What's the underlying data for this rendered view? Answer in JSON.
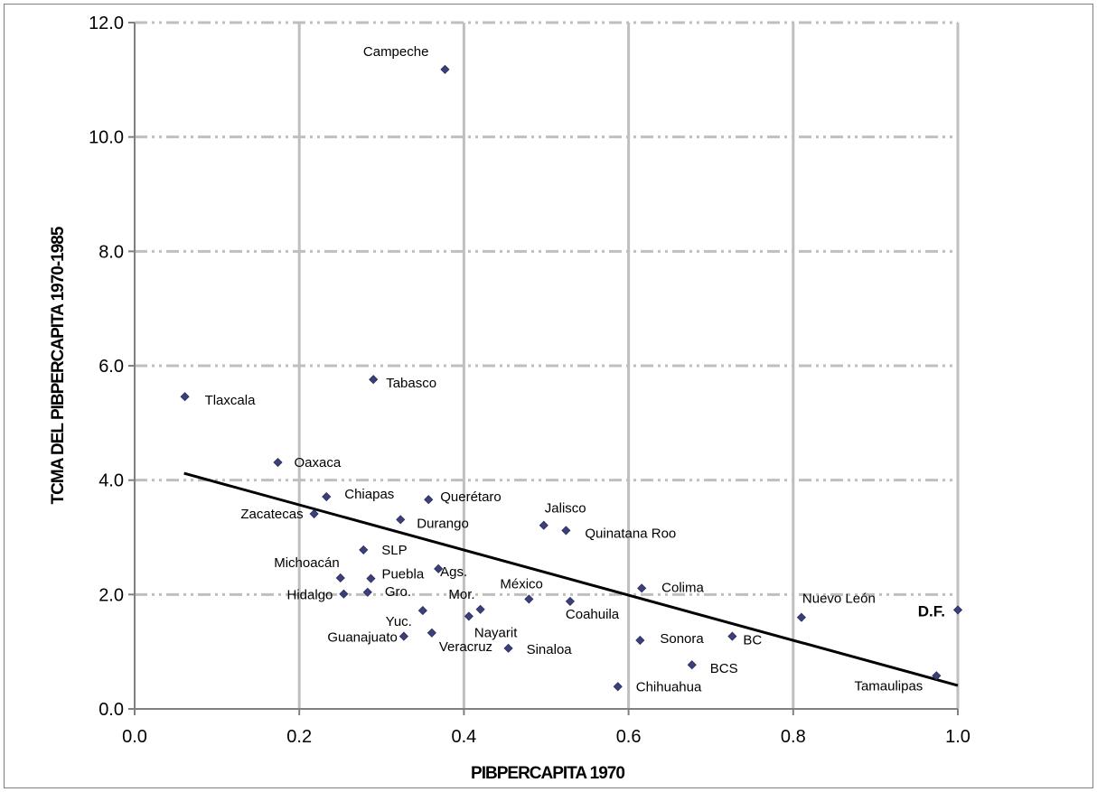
{
  "chart_data": {
    "type": "scatter",
    "title": "",
    "xlabel": "PIBPERCAPITA 1970",
    "ylabel": "TCMA DEL PIBPERCAPITA 1970-1985",
    "xlim": [
      0.0,
      1.0
    ],
    "ylim": [
      0.0,
      12.0
    ],
    "x_ticks": [
      "0.0",
      "0.2",
      "0.4",
      "0.6",
      "0.8",
      "1.0"
    ],
    "y_ticks": [
      "0.0",
      "2.0",
      "4.0",
      "6.0",
      "8.0",
      "10.0",
      "12.0"
    ],
    "grid": true,
    "legend": "none",
    "marker_color": "#3d3f7a",
    "trendline": {
      "x": [
        0.06,
        1.0
      ],
      "y": [
        4.12,
        0.41
      ]
    },
    "points": [
      {
        "label": "Campeche",
        "x": 0.377,
        "y": 11.18
      },
      {
        "label": "Tabasco",
        "x": 0.29,
        "y": 5.76
      },
      {
        "label": "Tlaxcala",
        "x": 0.061,
        "y": 5.46
      },
      {
        "label": "Oaxaca",
        "x": 0.174,
        "y": 4.31
      },
      {
        "label": "Chiapas",
        "x": 0.233,
        "y": 3.71
      },
      {
        "label": "Querétaro",
        "x": 0.357,
        "y": 3.66
      },
      {
        "label": "Zacatecas",
        "x": 0.218,
        "y": 3.41
      },
      {
        "label": "Durango",
        "x": 0.323,
        "y": 3.31
      },
      {
        "label": "Jalisco",
        "x": 0.497,
        "y": 3.21
      },
      {
        "label": "Quinatana Roo",
        "x": 0.524,
        "y": 3.12
      },
      {
        "label": "SLP",
        "x": 0.278,
        "y": 2.78
      },
      {
        "label": "Ags.",
        "x": 0.369,
        "y": 2.45
      },
      {
        "label": "Michoacán",
        "x": 0.25,
        "y": 2.29
      },
      {
        "label": "Puebla",
        "x": 0.287,
        "y": 2.28
      },
      {
        "label": "Colima",
        "x": 0.616,
        "y": 2.11
      },
      {
        "label": "Gro.",
        "x": 0.283,
        "y": 2.04
      },
      {
        "label": "Hidalgo",
        "x": 0.254,
        "y": 2.01
      },
      {
        "label": "México",
        "x": 0.479,
        "y": 1.92
      },
      {
        "label": "Coahuila",
        "x": 0.529,
        "y": 1.88
      },
      {
        "label": "Yuc.",
        "x": 0.35,
        "y": 1.72
      },
      {
        "label": "Mor.",
        "x": 0.42,
        "y": 1.74
      },
      {
        "label": "D.F.",
        "x": 1.0,
        "y": 1.73,
        "bold": true
      },
      {
        "label": "Nuevo León",
        "x": 0.81,
        "y": 1.6
      },
      {
        "label": "Nayarit",
        "x": 0.406,
        "y": 1.62
      },
      {
        "label": "Guanajuato",
        "x": 0.327,
        "y": 1.27
      },
      {
        "label": "Veracruz",
        "x": 0.361,
        "y": 1.33
      },
      {
        "label": "BC",
        "x": 0.726,
        "y": 1.27
      },
      {
        "label": "Sonora",
        "x": 0.614,
        "y": 1.2
      },
      {
        "label": "Sinaloa",
        "x": 0.454,
        "y": 1.06
      },
      {
        "label": "BCS",
        "x": 0.677,
        "y": 0.77
      },
      {
        "label": "Tamaulipas",
        "x": 0.974,
        "y": 0.58
      },
      {
        "label": "Chihuahua",
        "x": 0.587,
        "y": 0.39
      }
    ]
  }
}
